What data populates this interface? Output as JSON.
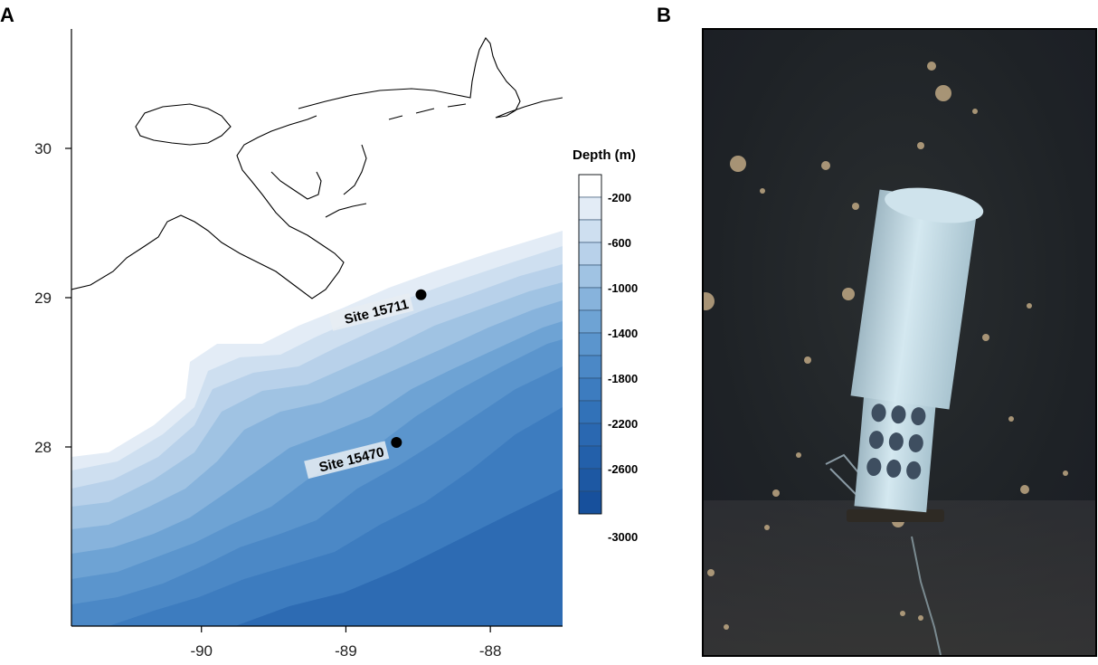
{
  "panels": {
    "a_label": "A",
    "b_label": "B"
  },
  "map": {
    "x_ticks": [
      {
        "value": -90,
        "label": "-90"
      },
      {
        "value": -89,
        "label": "-89"
      },
      {
        "value": -88,
        "label": "-88"
      }
    ],
    "y_ticks": [
      {
        "value": 30,
        "label": "30"
      },
      {
        "value": 29,
        "label": "29"
      },
      {
        "value": 28,
        "label": "28"
      }
    ],
    "x_range": [
      -90.9,
      -87.5
    ],
    "y_range": [
      26.8,
      30.8
    ],
    "sites": [
      {
        "id": "site-15711",
        "label": "Site 15711",
        "lon": -88.48,
        "lat": 29.02
      },
      {
        "id": "site-15470",
        "label": "Site 15470",
        "lon": -88.65,
        "lat": 28.03
      }
    ],
    "legend": {
      "title": "Depth (m)",
      "labels": [
        "-200",
        "-600",
        "-1000",
        "-1400",
        "-1800",
        "-2200",
        "-2600",
        "-3000"
      ],
      "colors": [
        "#ffffff",
        "#e3ecf6",
        "#cedff0",
        "#b8d1ea",
        "#a0c3e3",
        "#87b3dc",
        "#6ea3d4",
        "#5b95cd",
        "#4b88c6",
        "#3d7cbf",
        "#3272b8",
        "#2a68b1",
        "#2360aa",
        "#1d58a3",
        "#17509c"
      ]
    }
  },
  "photo": {
    "description_icon": "sediment-trap-photo"
  }
}
